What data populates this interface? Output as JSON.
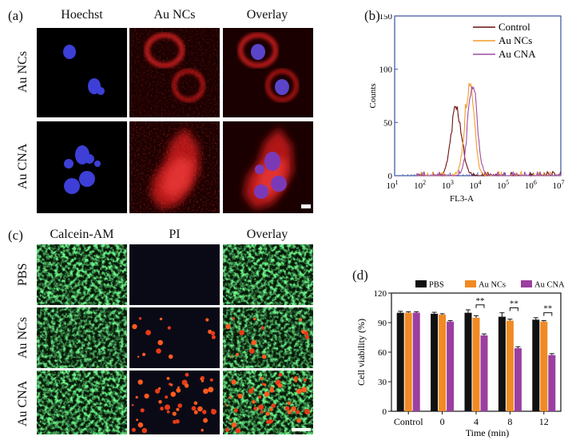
{
  "panel_a": {
    "label": "(a)",
    "columns": [
      "Hoechst",
      "Au NCs",
      "Overlay"
    ],
    "rows": [
      "Au NCs",
      "Au CNA"
    ]
  },
  "panel_b": {
    "label": "(b)",
    "chart_data": {
      "type": "line",
      "xlabel": "FL3-A",
      "ylabel": "Counts",
      "x_scale": "log",
      "xlim": [
        10,
        10000000
      ],
      "ylim": [
        0,
        150
      ],
      "x_ticks": [
        {
          "base": "10",
          "exp": "1"
        },
        {
          "base": "10",
          "exp": "2"
        },
        {
          "base": "10",
          "exp": "3"
        },
        {
          "base": "10",
          "exp": "4"
        },
        {
          "base": "10",
          "exp": "5"
        },
        {
          "base": "10",
          "exp": "6"
        },
        {
          "base": "10",
          "exp": "7"
        }
      ],
      "y_ticks": [
        "0",
        "50",
        "100",
        "150"
      ],
      "legend_position": "top-right",
      "series": [
        {
          "name": "Control",
          "color": "#6b0f0f",
          "peak_x": 1700,
          "peak_y": 65,
          "spread": 0.19
        },
        {
          "name": "Au NCs",
          "color": "#f39c2a",
          "peak_x": 5000,
          "peak_y": 87,
          "spread": 0.17
        },
        {
          "name": "Au CNA",
          "color": "#a04aa6",
          "peak_x": 6500,
          "peak_y": 84,
          "spread": 0.17
        }
      ]
    }
  },
  "panel_c": {
    "label": "(c)",
    "columns": [
      "Calcein-AM",
      "PI",
      "Overlay"
    ],
    "rows": [
      "PBS",
      "Au NCs",
      "Au CNA"
    ]
  },
  "panel_d": {
    "label": "(d)",
    "chart_data": {
      "type": "bar",
      "ylabel": "Cell viability (%)",
      "xlabel": "Time (min)",
      "categories": [
        "Control",
        "0",
        "4",
        "8",
        "12"
      ],
      "ylim": [
        0,
        120
      ],
      "y_ticks": [
        "0",
        "30",
        "60",
        "90",
        "120"
      ],
      "legend_position": "top",
      "series": [
        {
          "name": "PBS",
          "color": "#111111",
          "values": [
            100,
            99,
            100,
            96,
            93
          ],
          "errors": [
            1.5,
            1.5,
            3,
            4,
            2
          ]
        },
        {
          "name": "Au NCs",
          "color": "#f08a24",
          "values": [
            100,
            98,
            95,
            92,
            91
          ],
          "errors": [
            1,
            1,
            2,
            1.5,
            1
          ]
        },
        {
          "name": "Au CNA",
          "color": "#9b3fa0",
          "values": [
            100,
            91,
            77,
            64,
            57
          ],
          "errors": [
            1,
            1,
            1.5,
            1.5,
            1.5
          ]
        }
      ],
      "annotations": [
        {
          "category": "4",
          "text": "**"
        },
        {
          "category": "8",
          "text": "**"
        },
        {
          "category": "12",
          "text": "**"
        }
      ]
    }
  }
}
